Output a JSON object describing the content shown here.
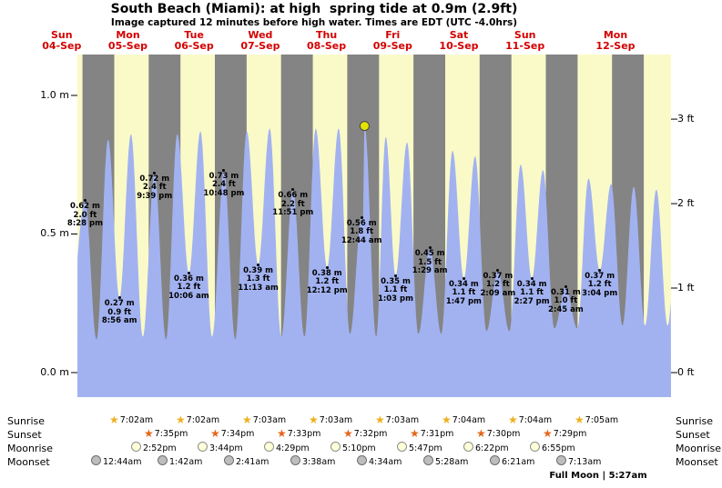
{
  "header": {
    "title": "South Beach (Miami): at high  spring tide at 0.9m (2.9ft)",
    "subtitle": "Image captured 12 minutes before high water. Times are EDT (UTC -4.0hrs)"
  },
  "chart_data": {
    "type": "area",
    "title": "South Beach (Miami) tide height curve",
    "ylabel_left": "meters",
    "ylabel_right": "feet",
    "ylim_m": [
      -0.09,
      1.15
    ],
    "y_ticks_m": [
      {
        "label": "1.0 m",
        "value": 1.0
      },
      {
        "label": "0.5 m",
        "value": 0.5
      },
      {
        "label": "0.0 m",
        "value": 0.0
      }
    ],
    "y_ticks_ft": [
      {
        "label": "3 ft",
        "value": 0.9144
      },
      {
        "label": "2 ft",
        "value": 0.6096
      },
      {
        "label": "1 ft",
        "value": 0.3048
      },
      {
        "label": "0 ft",
        "value": 0.0
      }
    ],
    "days": [
      {
        "weekday": "Sun",
        "date": "04-Sep"
      },
      {
        "weekday": "Mon",
        "date": "05-Sep"
      },
      {
        "weekday": "Tue",
        "date": "06-Sep"
      },
      {
        "weekday": "Wed",
        "date": "07-Sep"
      },
      {
        "weekday": "Thu",
        "date": "08-Sep"
      },
      {
        "weekday": "Fri",
        "date": "09-Sep"
      },
      {
        "weekday": "Sat",
        "date": "10-Sep"
      },
      {
        "weekday": "Sun",
        "date": "11-Sep"
      },
      {
        "weekday": "Mon",
        "date": "12-Sep"
      }
    ],
    "tide_events": [
      {
        "m": "0.62 m",
        "ft": "2.0 ft",
        "time": "8:28 pm",
        "t": 20.47,
        "h": 0.62
      },
      {
        "m": "0.27 m",
        "ft": "0.9 ft",
        "time": "8:56 am",
        "t": 32.93,
        "h": 0.27
      },
      {
        "m": "0.72 m",
        "ft": "2.4 ft",
        "time": "9:39 pm",
        "t": 45.65,
        "h": 0.72
      },
      {
        "m": "0.36 m",
        "ft": "1.2 ft",
        "time": "10:06 am",
        "t": 58.1,
        "h": 0.36
      },
      {
        "m": "0.73 m",
        "ft": "2.4 ft",
        "time": "10:48 pm",
        "t": 70.8,
        "h": 0.73
      },
      {
        "m": "0.39 m",
        "ft": "1.3 ft",
        "time": "11:13 am",
        "t": 83.22,
        "h": 0.39
      },
      {
        "m": "0.66 m",
        "ft": "2.2 ft",
        "time": "11:51 pm",
        "t": 95.85,
        "h": 0.66
      },
      {
        "m": "0.38 m",
        "ft": "1.2 ft",
        "time": "12:12 pm",
        "t": 108.2,
        "h": 0.38
      },
      {
        "m": "0.56 m",
        "ft": "1.8 ft",
        "time": "12:44 am",
        "t": 120.73,
        "h": 0.56
      },
      {
        "m": "0.35 m",
        "ft": "1.1 ft",
        "time": "1:03 pm",
        "t": 133.05,
        "h": 0.35
      },
      {
        "m": "0.45 m",
        "ft": "1.5 ft",
        "time": "1:29 am",
        "t": 145.48,
        "h": 0.45
      },
      {
        "m": "0.34 m",
        "ft": "1.1 ft",
        "time": "1:47 pm",
        "t": 157.78,
        "h": 0.34
      },
      {
        "m": "0.37 m",
        "ft": "1.2 ft",
        "time": "2:09 am",
        "t": 170.15,
        "h": 0.37
      },
      {
        "m": "0.34 m",
        "ft": "1.1 ft",
        "time": "2:27 pm",
        "t": 182.45,
        "h": 0.34
      },
      {
        "m": "0.31 m",
        "ft": "1.0 ft",
        "time": "2:45 am",
        "t": 194.75,
        "h": 0.31
      },
      {
        "m": "0.37 m",
        "ft": "1.2 ft",
        "time": "3:04 pm",
        "t": 207.07,
        "h": 0.37
      }
    ],
    "curve_extremes": [
      [
        10.0,
        0.8
      ],
      [
        14.5,
        0.15
      ],
      [
        20.47,
        0.62
      ],
      [
        24.6,
        0.12
      ],
      [
        28.8,
        0.84
      ],
      [
        32.93,
        0.27
      ],
      [
        37.1,
        0.86
      ],
      [
        41.4,
        0.13
      ],
      [
        45.65,
        0.72
      ],
      [
        49.8,
        0.12
      ],
      [
        53.9,
        0.86
      ],
      [
        58.1,
        0.36
      ],
      [
        62.3,
        0.87
      ],
      [
        66.5,
        0.13
      ],
      [
        70.8,
        0.73
      ],
      [
        74.9,
        0.12
      ],
      [
        79.1,
        0.87
      ],
      [
        83.22,
        0.39
      ],
      [
        87.4,
        0.88
      ],
      [
        91.6,
        0.13
      ],
      [
        95.85,
        0.66
      ],
      [
        100.0,
        0.13
      ],
      [
        104.1,
        0.88
      ],
      [
        108.2,
        0.38
      ],
      [
        112.4,
        0.88
      ],
      [
        116.5,
        0.14
      ],
      [
        120.73,
        0.56
      ],
      [
        121.15,
        0.54
      ],
      [
        121.8,
        0.89
      ],
      [
        126.0,
        0.13
      ],
      [
        129.5,
        0.85
      ],
      [
        133.05,
        0.35
      ],
      [
        137.2,
        0.83
      ],
      [
        141.3,
        0.14
      ],
      [
        145.48,
        0.45
      ],
      [
        149.6,
        0.14
      ],
      [
        153.7,
        0.8
      ],
      [
        157.78,
        0.34
      ],
      [
        161.9,
        0.78
      ],
      [
        166.0,
        0.15
      ],
      [
        170.15,
        0.37
      ],
      [
        174.3,
        0.15
      ],
      [
        178.4,
        0.75
      ],
      [
        182.45,
        0.34
      ],
      [
        186.5,
        0.73
      ],
      [
        190.6,
        0.16
      ],
      [
        194.75,
        0.31
      ],
      [
        198.9,
        0.16
      ],
      [
        203.0,
        0.7
      ],
      [
        207.07,
        0.37
      ],
      [
        211.2,
        0.68
      ],
      [
        215.3,
        0.17
      ],
      [
        219.4,
        0.67
      ],
      [
        223.5,
        0.17
      ],
      [
        227.6,
        0.66
      ],
      [
        231.7,
        0.17
      ],
      [
        235.8,
        0.65
      ]
    ],
    "marker": {
      "t": 121.8,
      "h": 0.89,
      "height_label": "0.9m (2.9ft)"
    },
    "colors": {
      "plot_bg": "#848484",
      "day_band": "#fafac9",
      "tide_fill": "#a2b2f0",
      "day_label": "#d40000",
      "marker": "#e3e300"
    }
  },
  "astro": {
    "rows": [
      {
        "label": "Sunrise",
        "icon": "sunrise-star",
        "times": [
          "7:02am",
          "7:02am",
          "7:03am",
          "7:03am",
          "7:03am",
          "7:04am",
          "7:04am",
          "7:05am"
        ]
      },
      {
        "label": "Sunset",
        "icon": "sunset-star",
        "times": [
          "7:35pm",
          "7:34pm",
          "7:33pm",
          "7:32pm",
          "7:31pm",
          "7:30pm",
          "7:29pm"
        ]
      },
      {
        "label": "Moonrise",
        "icon": "moonrise-circle",
        "times": [
          "2:52pm",
          "3:44pm",
          "4:29pm",
          "5:10pm",
          "5:47pm",
          "6:22pm",
          "6:55pm"
        ]
      },
      {
        "label": "Moonset",
        "icon": "moonset-circle",
        "times": [
          "12:44am",
          "1:42am",
          "2:41am",
          "3:38am",
          "4:34am",
          "5:28am",
          "6:21am",
          "7:13am"
        ]
      }
    ],
    "full_moon": "Full Moon | 5:27am"
  }
}
